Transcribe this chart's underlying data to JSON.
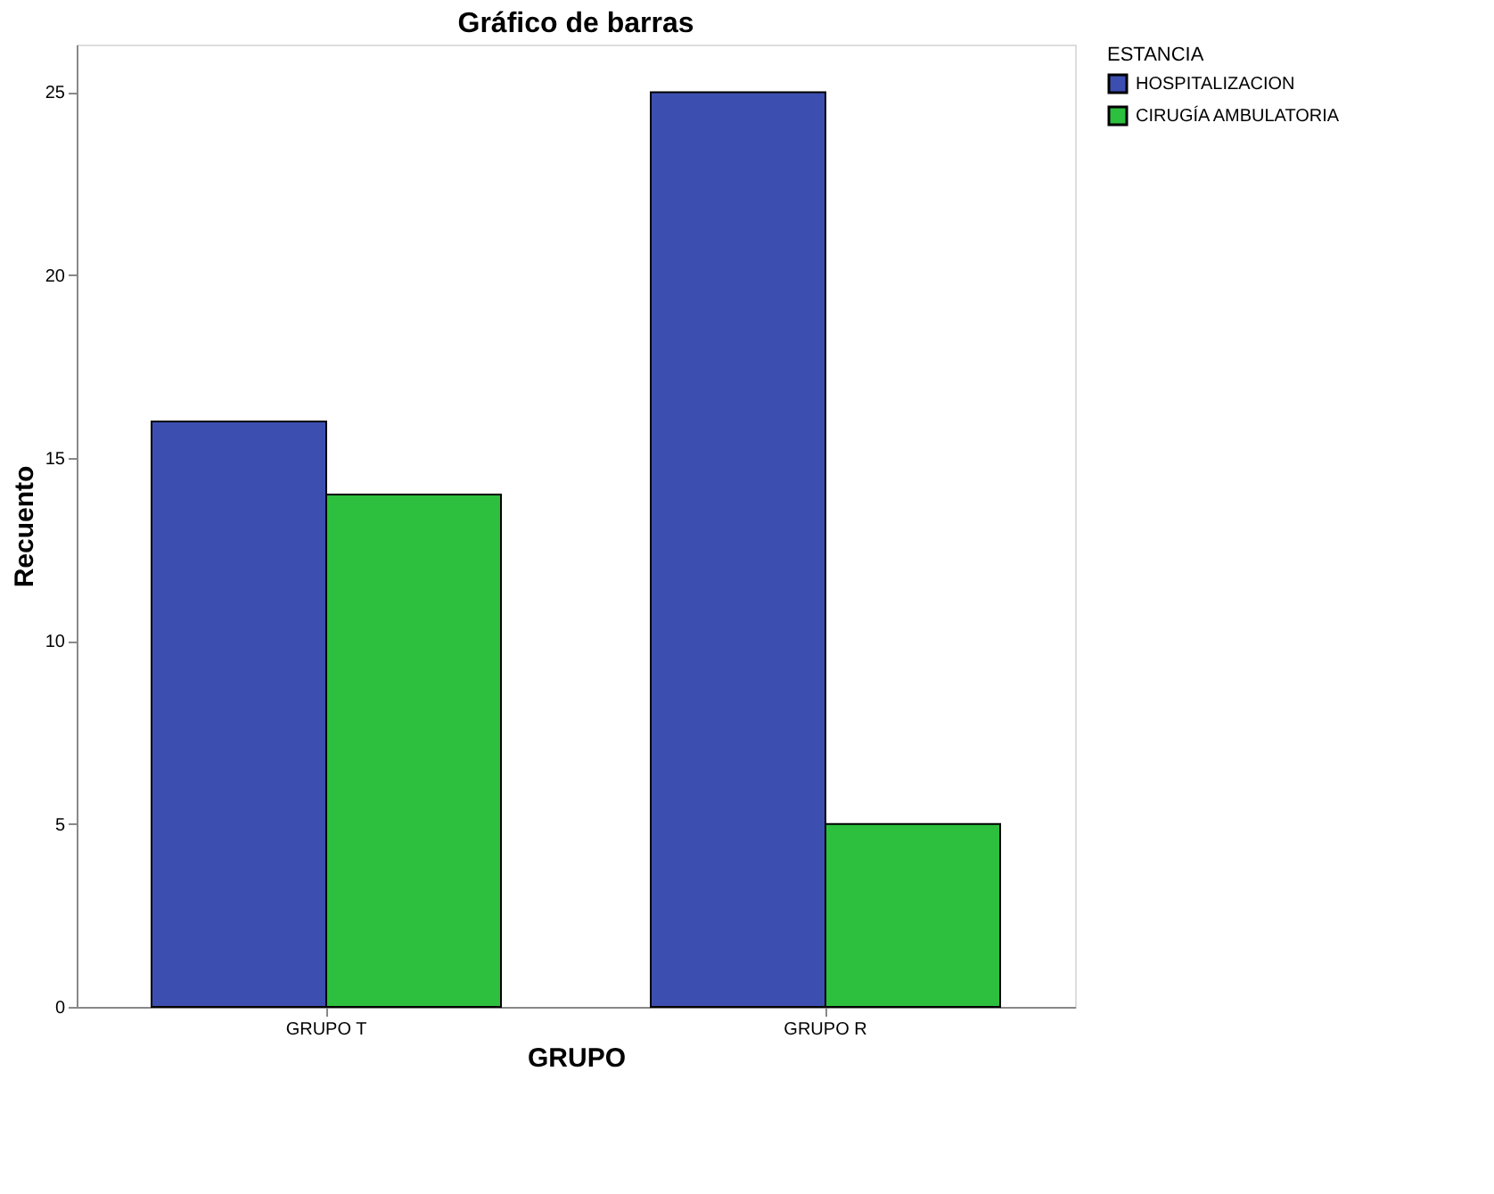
{
  "chart_data": {
    "type": "bar",
    "title": "Gráfico de barras",
    "xlabel": "GRUPO",
    "ylabel": "Recuento",
    "legend_title": "ESTANCIA",
    "categories": [
      "GRUPO T",
      "GRUPO R"
    ],
    "series": [
      {
        "name": "HOSPITALIZACION",
        "color": "#3c4fb0",
        "values": [
          16,
          25
        ]
      },
      {
        "name": "CIRUGÍA AMBULATORIA",
        "color": "#2dbf3e",
        "values": [
          14,
          5
        ]
      }
    ],
    "ylim": [
      0,
      26.3
    ],
    "yticks": [
      0,
      5,
      10,
      15,
      20,
      25
    ],
    "grid": false,
    "legend": "top right"
  }
}
